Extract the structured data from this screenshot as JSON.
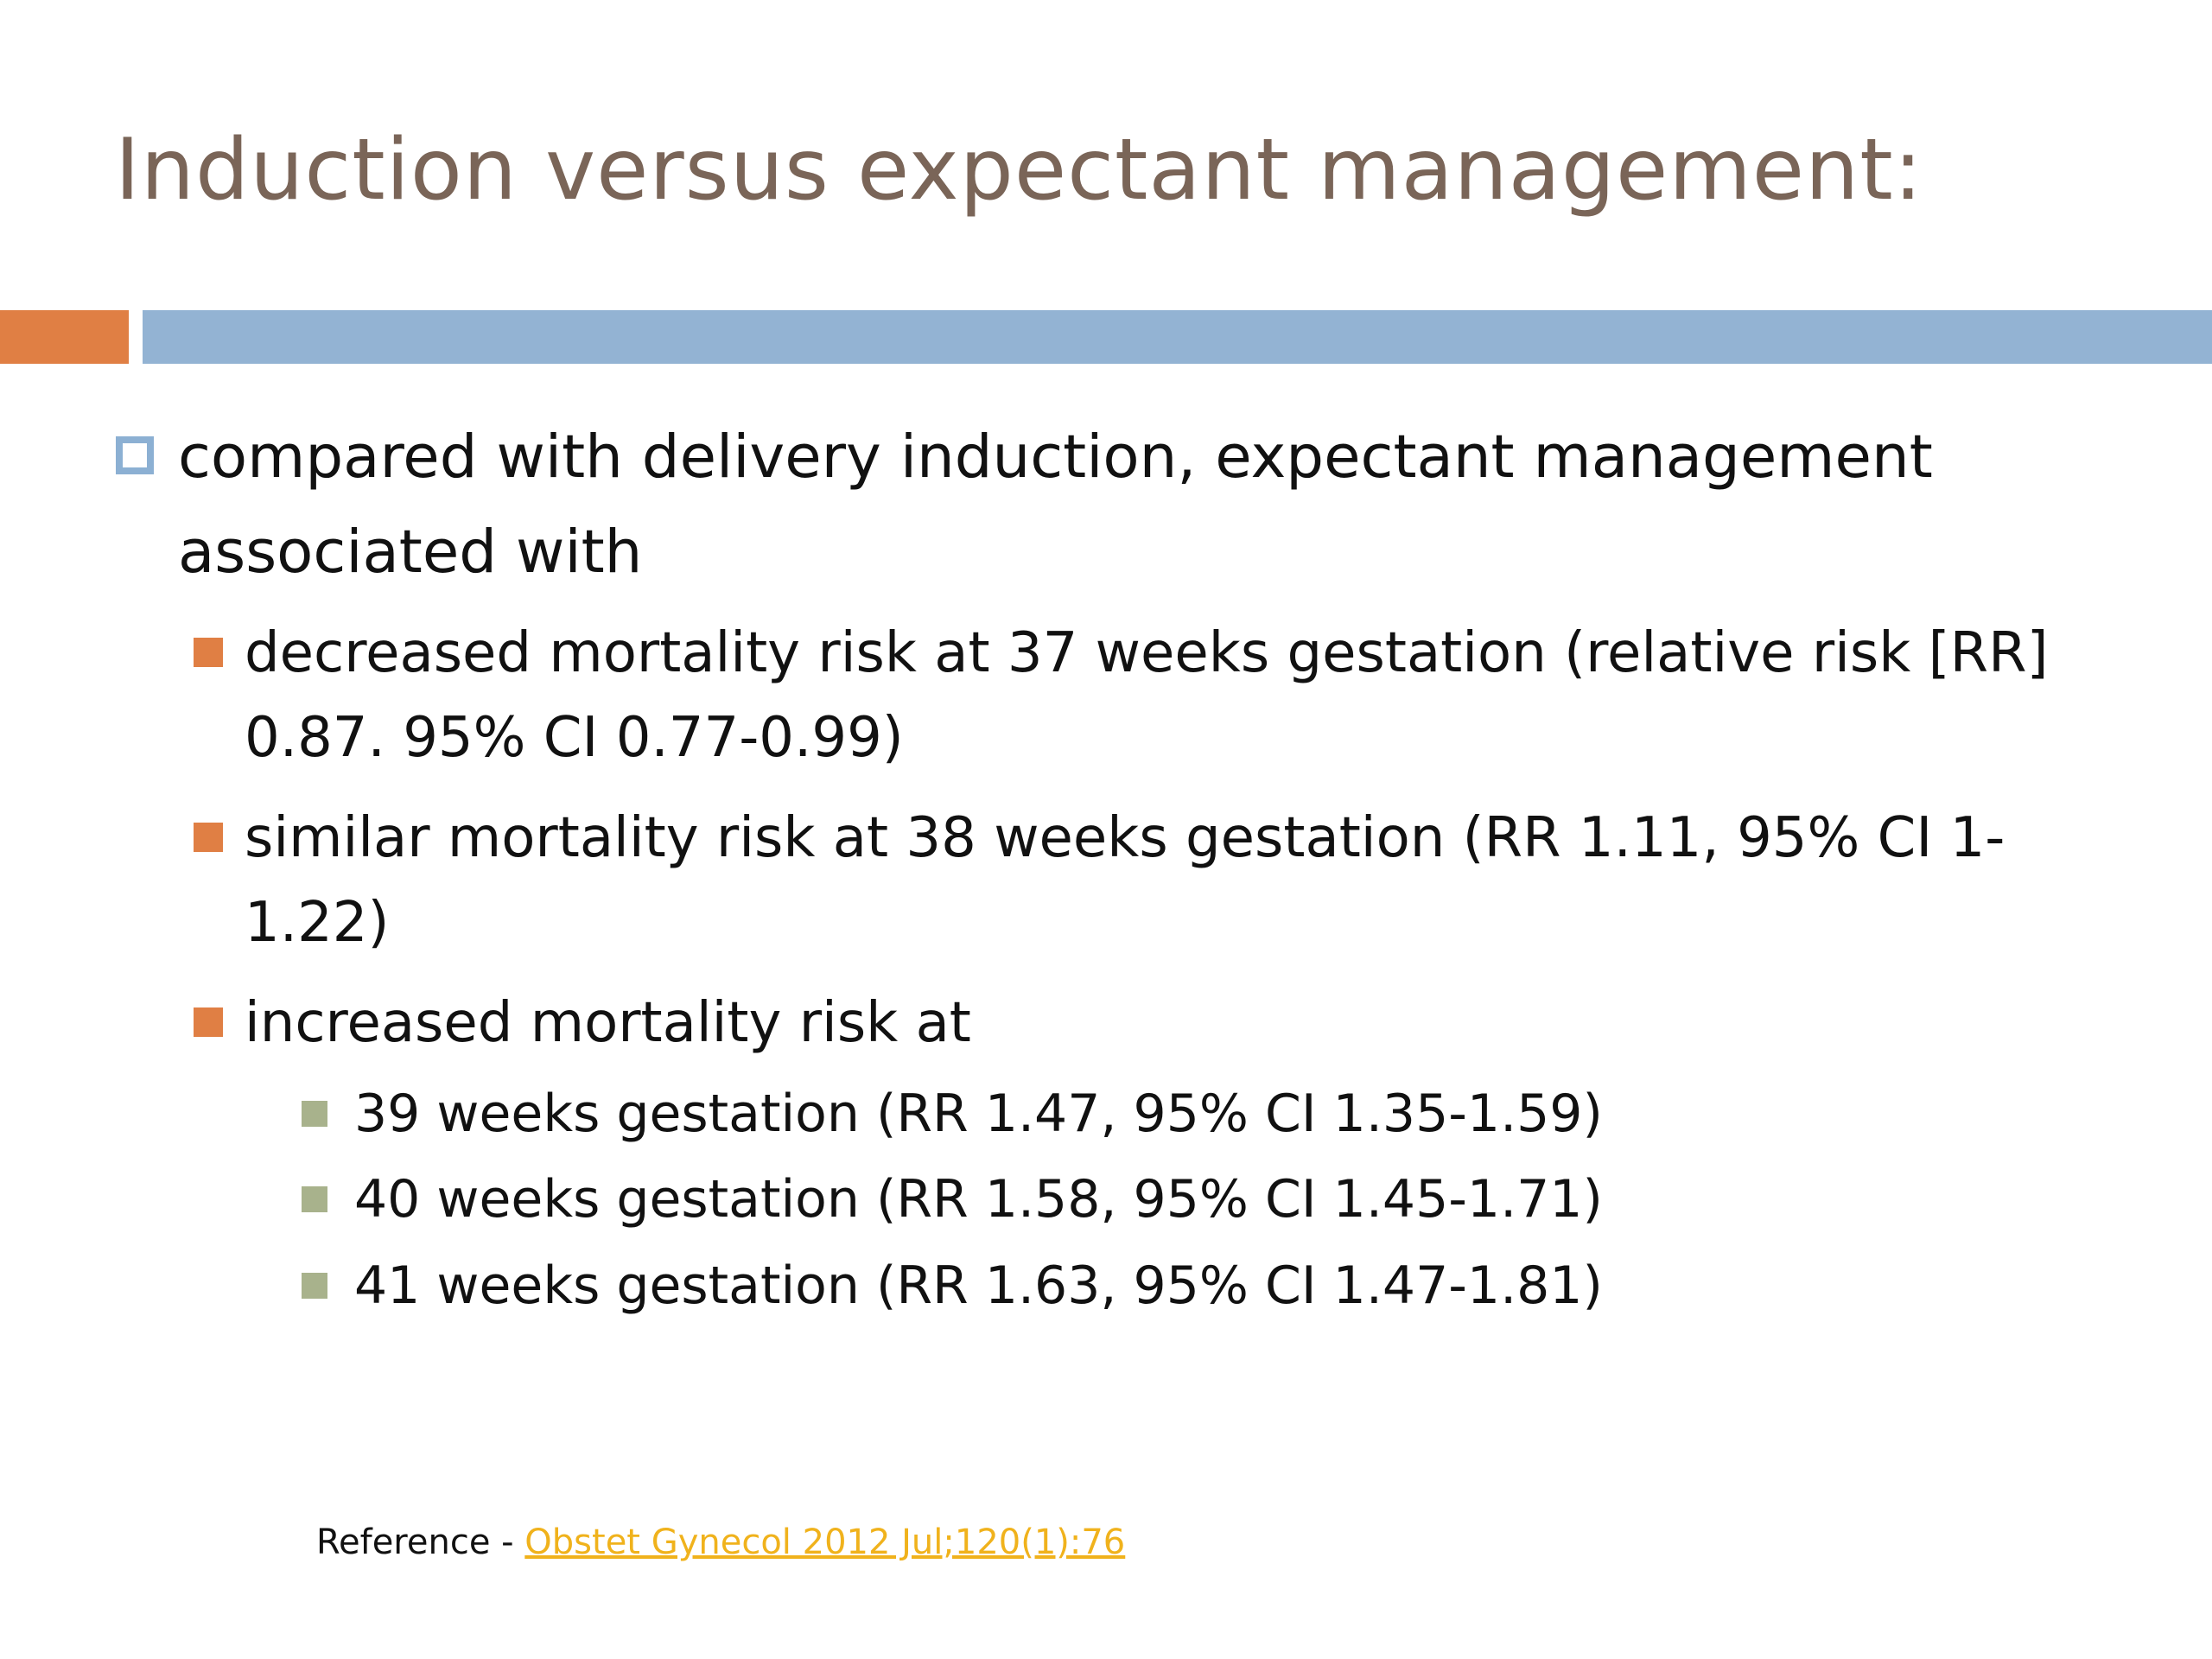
{
  "slide": {
    "title": "Induction versus expectant management:",
    "colors": {
      "title": "#7a6558",
      "accent_orange": "#e07f44",
      "accent_blue": "#93b3d3",
      "bullet_level3": "#a8b28c",
      "link": "#f0b21c"
    }
  },
  "content": {
    "main_bullet": "compared with delivery induction, expectant management associated with",
    "sub_bullets": [
      "decreased mortality risk at 37 weeks gestation (relative risk [RR] 0.87. 95% CI 0.77-0.99)",
      "similar mortality risk at 38 weeks gestation (RR 1.11, 95% CI 1-1.22)",
      "increased mortality risk at"
    ],
    "nested_bullets": [
      "39 weeks gestation (RR 1.47, 95% CI 1.35-1.59)",
      "40 weeks gestation (RR 1.58, 95% CI 1.45-1.71)",
      "41 weeks gestation (RR 1.63, 95% CI 1.47-1.81)"
    ]
  },
  "reference": {
    "label": "Reference - ",
    "link_text": "Obstet Gynecol 2012 Jul;120(1):76"
  }
}
